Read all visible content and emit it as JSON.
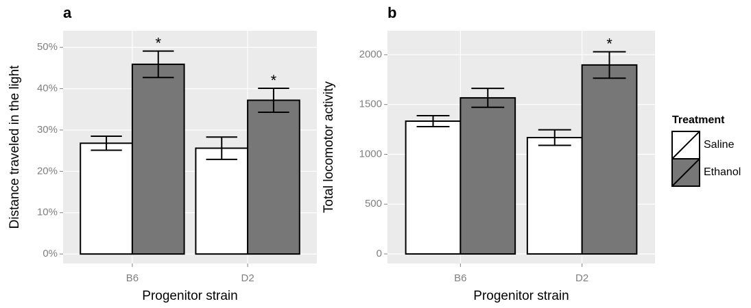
{
  "chart_data": [
    {
      "type": "bar",
      "panel_label": "a",
      "ylabel": "Distance traveled in the light",
      "xlabel": "Progenitor strain",
      "categories": [
        "B6",
        "D2"
      ],
      "series": [
        {
          "color": "#ffffff",
          "values": [
            26.8,
            25.6
          ],
          "errors": [
            1.7,
            2.7
          ]
        },
        {
          "color": "#777777",
          "values": [
            45.9,
            37.2
          ],
          "errors": [
            3.2,
            2.9
          ]
        }
      ],
      "ylim": [
        -2.3,
        54
      ],
      "yticks": [
        {
          "value": 0,
          "label": "0%"
        },
        {
          "value": 10,
          "label": "10%"
        },
        {
          "value": 20,
          "label": "20%"
        },
        {
          "value": 30,
          "label": "30%"
        },
        {
          "value": 40,
          "label": "40%"
        },
        {
          "value": 50,
          "label": "50%"
        }
      ],
      "grid": true,
      "annotations": [
        {
          "text": "*",
          "category": "B6",
          "series": 1
        },
        {
          "text": "*",
          "category": "D2",
          "series": 1
        }
      ]
    },
    {
      "type": "bar",
      "panel_label": "b",
      "ylabel": "Total locomotor activity",
      "xlabel": "Progenitor strain",
      "categories": [
        "B6",
        "D2"
      ],
      "series": [
        {
          "name": "Saline",
          "color": "#ffffff",
          "values": [
            1333,
            1168
          ],
          "errors": [
            55,
            78
          ]
        },
        {
          "name": "Ethanol",
          "color": "#777777",
          "values": [
            1567,
            1897
          ],
          "errors": [
            95,
            133
          ]
        }
      ],
      "ylim": [
        -96,
        2240
      ],
      "yticks": [
        0,
        500,
        1000,
        1500,
        2000
      ],
      "grid": true,
      "legend": "right",
      "legend_title": "Treatment",
      "annotations": [
        {
          "text": "*",
          "category": "D2",
          "series": 1
        }
      ]
    }
  ]
}
